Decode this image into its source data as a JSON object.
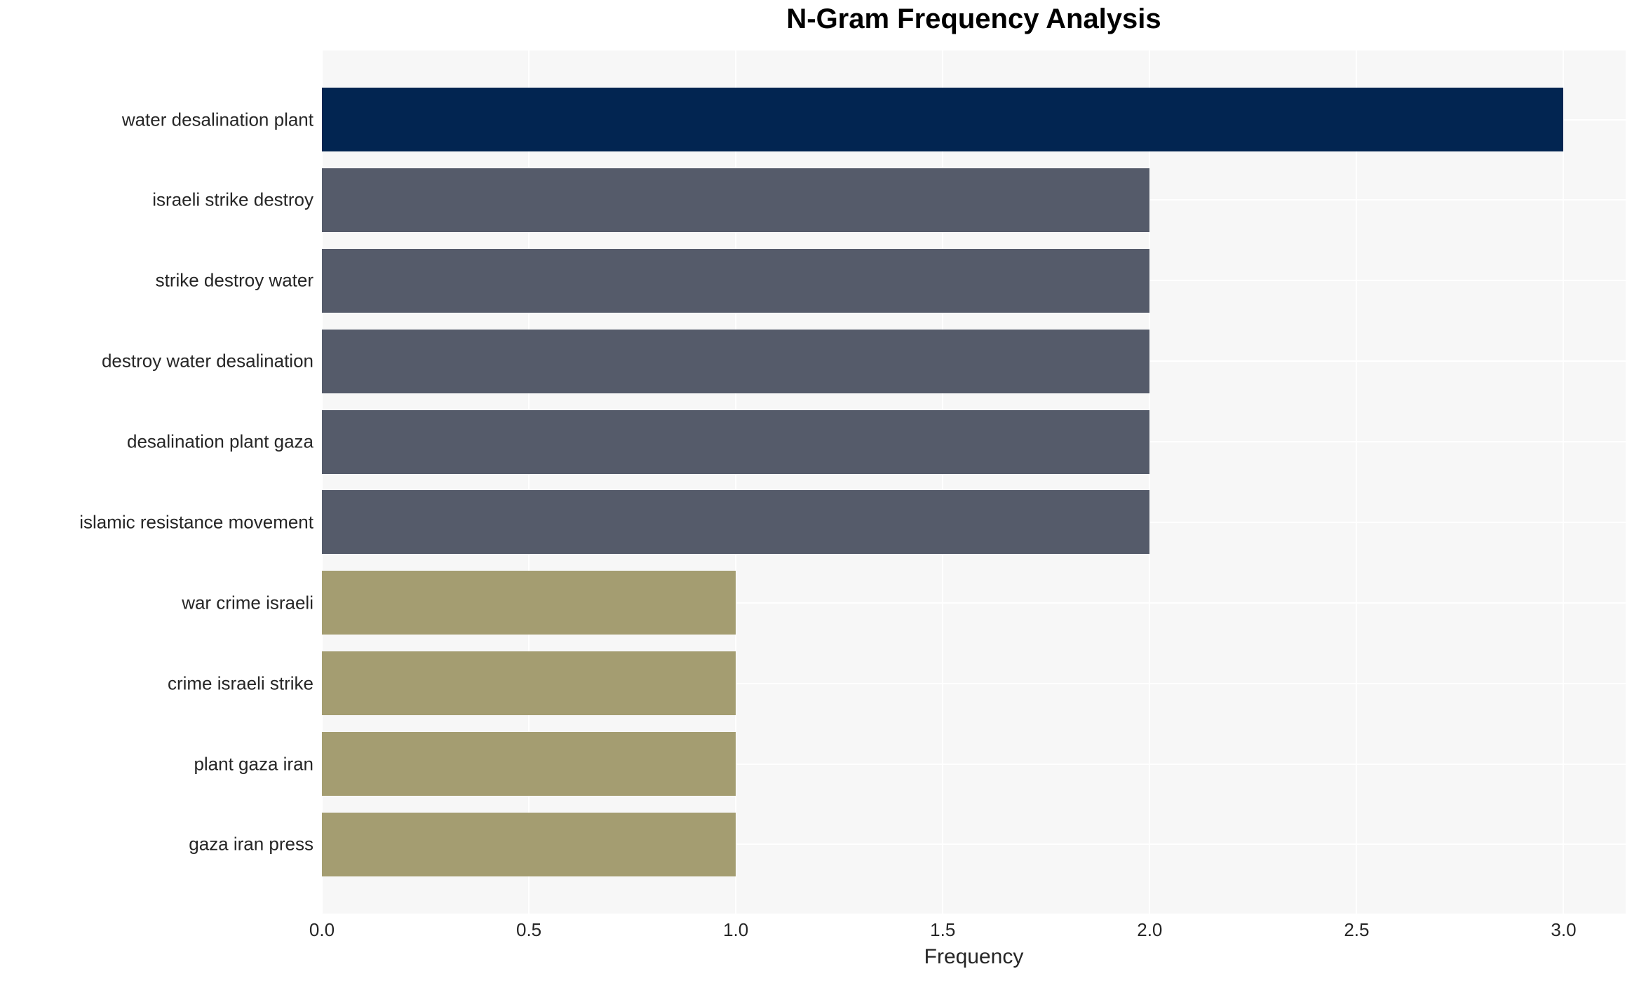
{
  "chart_data": {
    "type": "bar",
    "orientation": "horizontal",
    "title": "N-Gram Frequency Analysis",
    "xlabel": "Frequency",
    "ylabel": "",
    "categories": [
      "water desalination plant",
      "israeli strike destroy",
      "strike destroy water",
      "destroy water desalination",
      "desalination plant gaza",
      "islamic resistance movement",
      "war crime israeli",
      "crime israeli strike",
      "plant gaza iran",
      "gaza iran press"
    ],
    "values": [
      3,
      2,
      2,
      2,
      2,
      2,
      1,
      1,
      1,
      1
    ],
    "bar_colors": [
      "#022551",
      "#555b6a",
      "#555b6a",
      "#555b6a",
      "#555b6a",
      "#555b6a",
      "#a49d71",
      "#a49d71",
      "#a49d71",
      "#a49d71"
    ],
    "xlim": [
      0,
      3.15
    ],
    "xticks": [
      0.0,
      0.5,
      1.0,
      1.5,
      2.0,
      2.5,
      3.0
    ],
    "xtick_labels": [
      "0.0",
      "0.5",
      "1.0",
      "1.5",
      "2.0",
      "2.5",
      "3.0"
    ],
    "grid": true,
    "legend": false,
    "colors": {
      "freq3_bar": "#022551",
      "freq2_bar": "#555b6a",
      "freq1_bar": "#a49d71",
      "plot_background": "#f7f7f7",
      "gridline": "#ffffff",
      "tick_text": "#262626",
      "title_text": "#000000"
    }
  }
}
